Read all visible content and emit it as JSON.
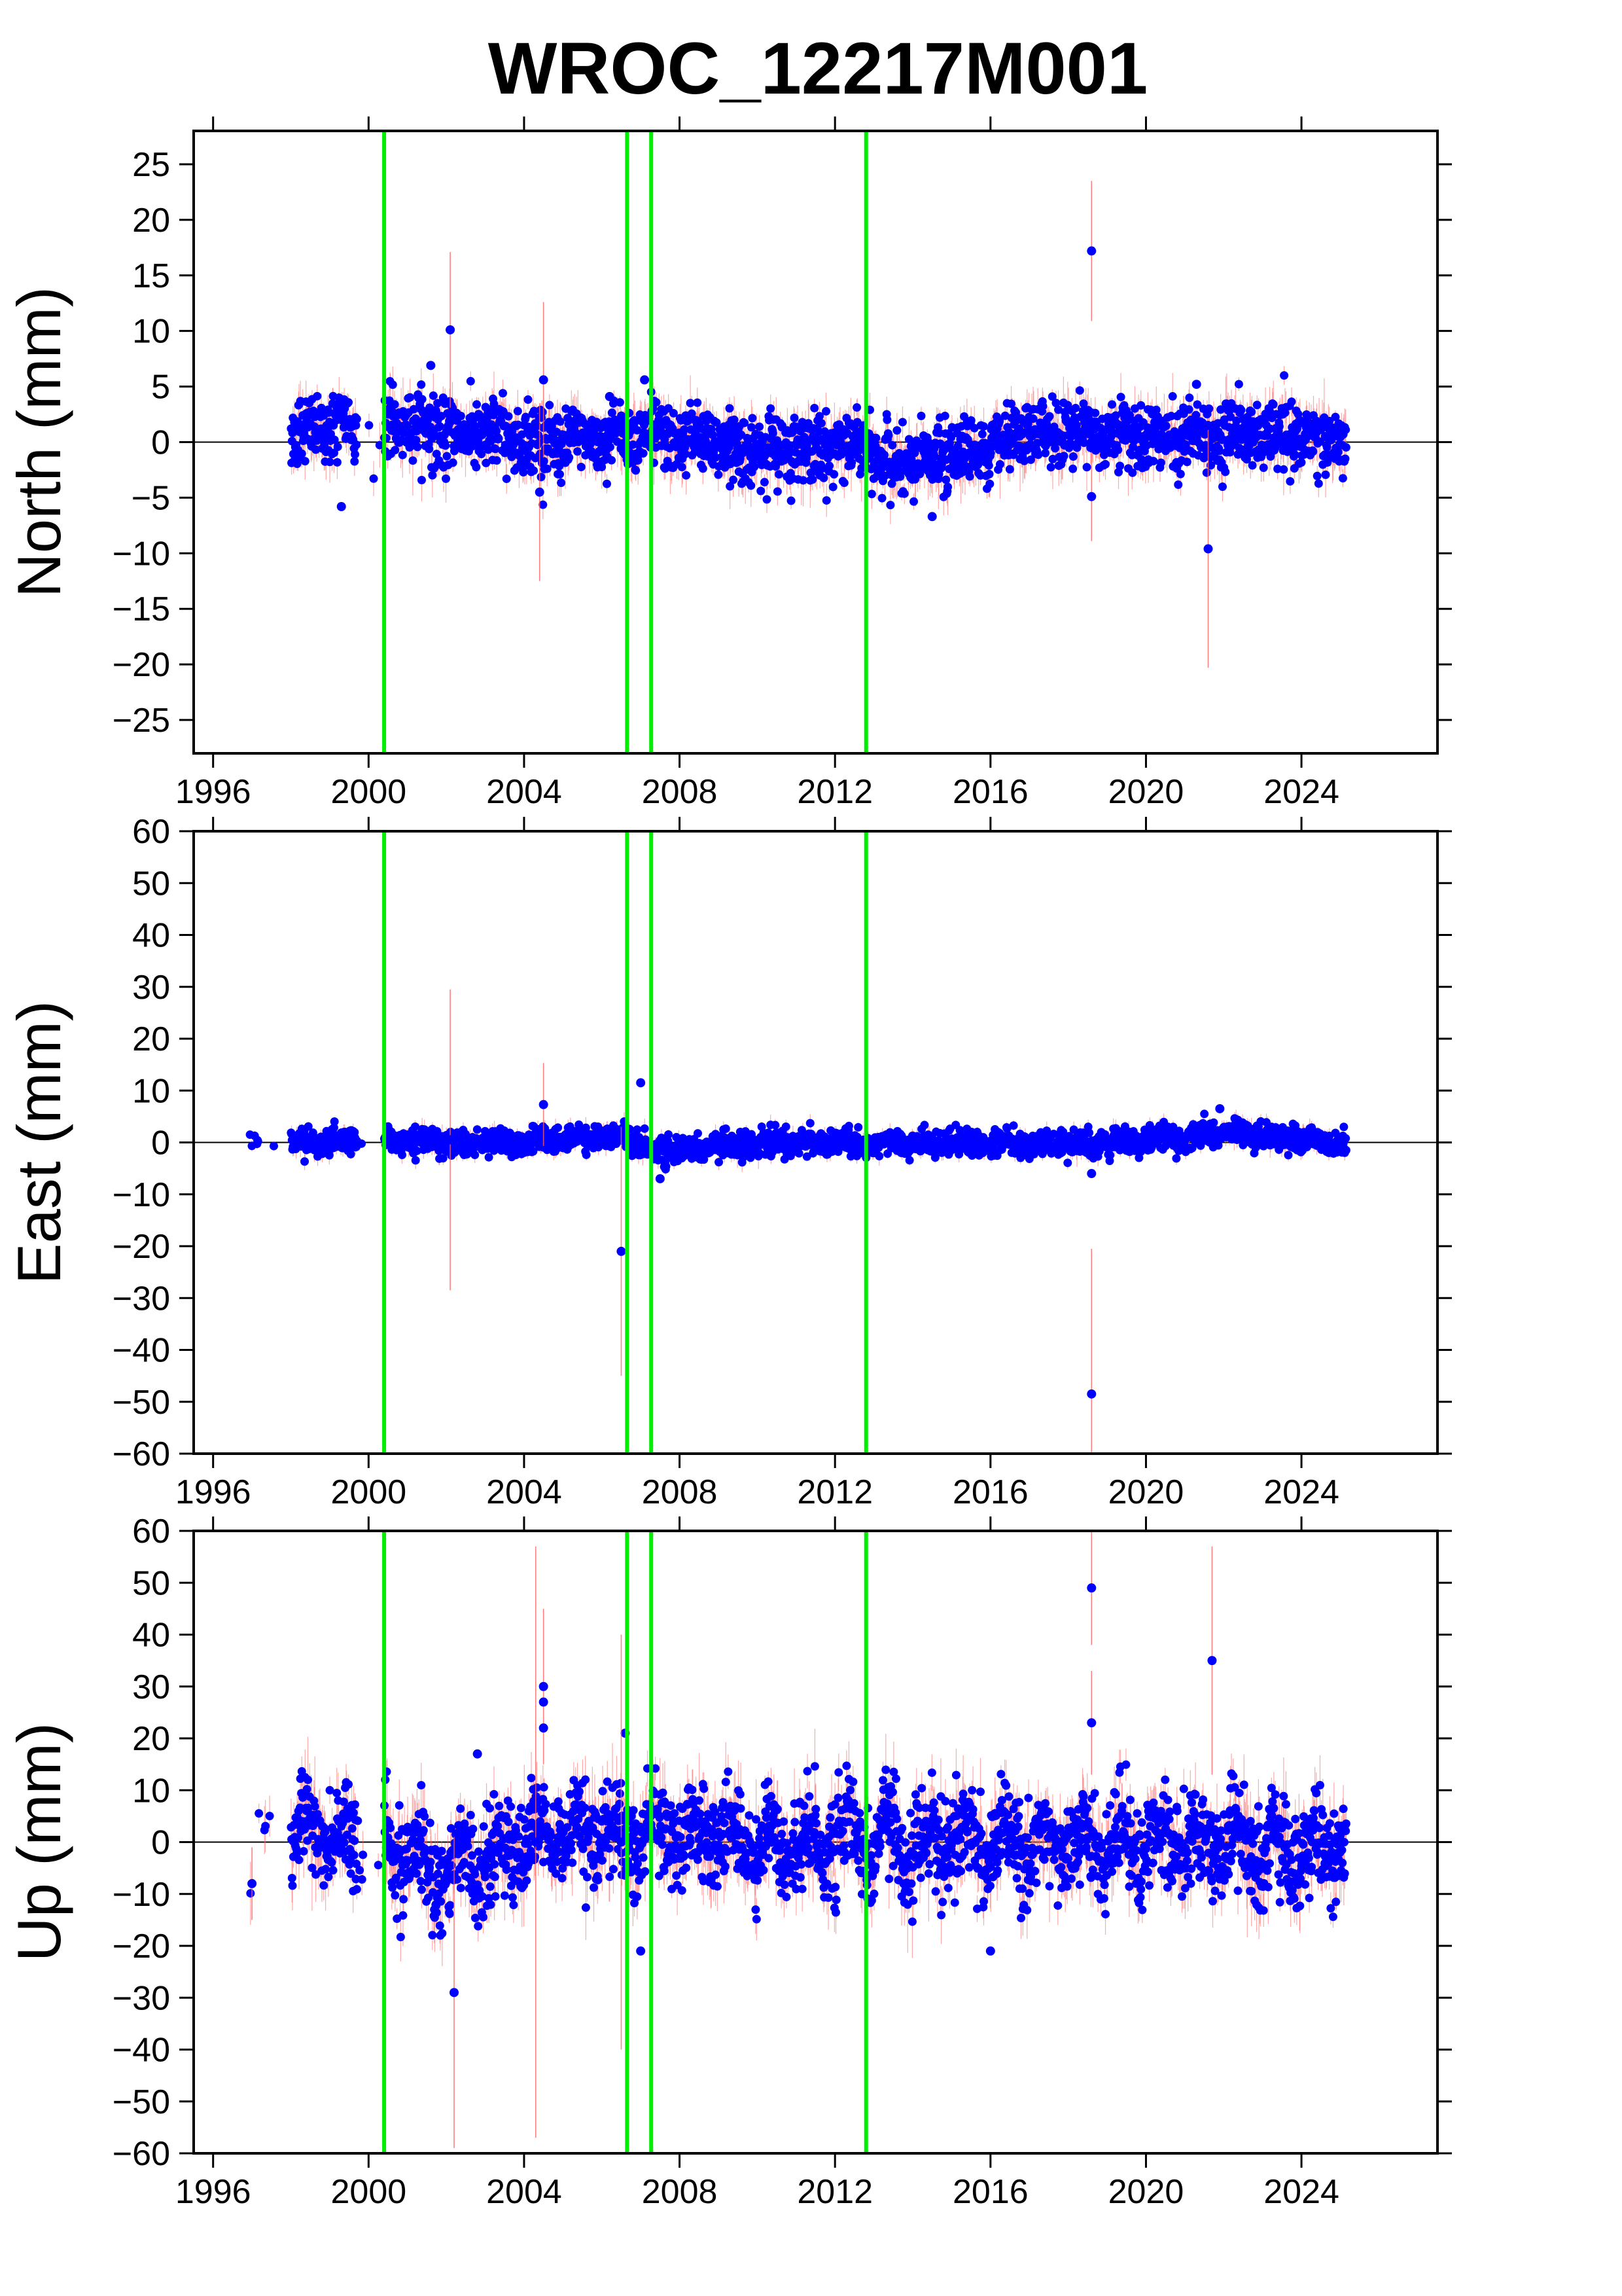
{
  "chart_data": {
    "type": "scatter",
    "title": "WROC_12217M001",
    "xlim": [
      1995.5,
      2027.5
    ],
    "x_ticks": [
      1996,
      2000,
      2004,
      2008,
      2012,
      2016,
      2020,
      2024
    ],
    "x_tick_labels": [
      "1996",
      "2000",
      "2004",
      "2008",
      "2012",
      "2016",
      "2020",
      "2024"
    ],
    "events": [
      2000.4,
      2006.65,
      2007.27,
      2012.8
    ],
    "colors": {
      "points": "#0000ff",
      "error_bars": "#ff6060",
      "events": "#00ee00",
      "zero_line": "#000000"
    },
    "grid": false,
    "panels": [
      {
        "component": "north",
        "ylabel": "North (mm)",
        "ylim": [
          -28,
          28
        ],
        "y_ticks": [
          -25,
          -20,
          -15,
          -10,
          -5,
          0,
          5,
          10,
          15,
          20,
          25
        ],
        "y_tick_labels": [
          "−25",
          "−20",
          "−15",
          "−10",
          "−5",
          "0",
          "5",
          "10",
          "15",
          "20",
          "25"
        ],
        "scatter_sd": 1.5,
        "trend": [
          [
            1997,
            0.3
          ],
          [
            2000.4,
            2.0
          ],
          [
            2002,
            0.8
          ],
          [
            2005,
            0.0
          ],
          [
            2007,
            0.8
          ],
          [
            2010,
            -0.8
          ],
          [
            2012.8,
            -0.3
          ],
          [
            2013.5,
            -2.5
          ],
          [
            2015,
            -1.0
          ],
          [
            2018,
            1.2
          ],
          [
            2020,
            0.5
          ],
          [
            2022,
            0.8
          ],
          [
            2025,
            0.3
          ]
        ],
        "gaps": [
          [
            1997.6,
            1998.0
          ],
          [
            1999.7,
            2000.4
          ]
        ],
        "outliers": [
          {
            "x": 2002.1,
            "y": 10.1,
            "err": 7.0
          },
          {
            "x": 2001.6,
            "y": 6.9,
            "err": 0
          },
          {
            "x": 2004.5,
            "y": 5.6,
            "err": 7.0
          },
          {
            "x": 2004.4,
            "y": -4.5,
            "err": 8.0
          },
          {
            "x": 2007.1,
            "y": 5.6,
            "err": 0
          },
          {
            "x": 1999.3,
            "y": -5.8,
            "err": 0
          },
          {
            "x": 2014.5,
            "y": -6.7,
            "err": 0
          },
          {
            "x": 2018.6,
            "y": 17.2,
            "err": 6.3
          },
          {
            "x": 2018.6,
            "y": -4.9,
            "err": 4.0
          },
          {
            "x": 2021.6,
            "y": -9.6,
            "err": 10.7
          },
          {
            "x": 2021.3,
            "y": 5.2,
            "err": 0
          },
          {
            "x": 2006.2,
            "y": 4.1,
            "err": 0
          }
        ]
      },
      {
        "component": "east",
        "ylabel": "East (mm)",
        "ylim": [
          -60,
          60
        ],
        "y_ticks": [
          -60,
          -50,
          -40,
          -30,
          -20,
          -10,
          0,
          10,
          20,
          30,
          40,
          50,
          60
        ],
        "y_tick_labels": [
          "−60",
          "−50",
          "−40",
          "−30",
          "−20",
          "−10",
          "0",
          "10",
          "20",
          "30",
          "40",
          "50",
          "60"
        ],
        "scatter_sd": 1.2,
        "trend": [
          [
            1997,
            0.0
          ],
          [
            2000.4,
            0.0
          ],
          [
            2004,
            0.0
          ],
          [
            2006.5,
            1.5
          ],
          [
            2007.5,
            -2.0
          ],
          [
            2010,
            0.0
          ],
          [
            2015,
            0.0
          ],
          [
            2018,
            -0.5
          ],
          [
            2021,
            1.0
          ],
          [
            2022,
            2.0
          ],
          [
            2025,
            0.0
          ]
        ],
        "gaps": [
          [
            1997.6,
            1998.0
          ],
          [
            1999.7,
            2000.4
          ]
        ],
        "outliers": [
          {
            "x": 2006.5,
            "y": -21.0,
            "err": 24.0
          },
          {
            "x": 2007.0,
            "y": 11.5,
            "err": 0
          },
          {
            "x": 2004.5,
            "y": 7.3,
            "err": 8.0
          },
          {
            "x": 2002.1,
            "y": 0.5,
            "err": 29.0
          },
          {
            "x": 2018.6,
            "y": -48.5,
            "err": 28.0
          },
          {
            "x": 2007.5,
            "y": -7.0,
            "err": 0
          },
          {
            "x": 2021.9,
            "y": 6.5,
            "err": 0
          },
          {
            "x": 2018.6,
            "y": -6.0,
            "err": 0
          }
        ]
      },
      {
        "component": "up",
        "ylabel": "Up (mm)",
        "ylim": [
          -60,
          60
        ],
        "y_ticks": [
          -60,
          -50,
          -40,
          -30,
          -20,
          -10,
          0,
          10,
          20,
          30,
          40,
          50,
          60
        ],
        "y_tick_labels": [
          "−60",
          "−50",
          "−40",
          "−30",
          "−20",
          "−10",
          "0",
          "10",
          "20",
          "30",
          "40",
          "50",
          "60"
        ],
        "scatter_sd": 4.5,
        "trend": [
          [
            1997,
            -2.0
          ],
          [
            1998.5,
            3.0
          ],
          [
            2000.4,
            -2.0
          ],
          [
            2002,
            -5.0
          ],
          [
            2004,
            0.0
          ],
          [
            2007,
            2.0
          ],
          [
            2010,
            0.0
          ],
          [
            2015,
            0.0
          ],
          [
            2020,
            0.0
          ],
          [
            2025,
            -2.0
          ]
        ],
        "gaps": [
          [
            1997.6,
            1998.0
          ],
          [
            1999.7,
            2000.4
          ]
        ],
        "outliers": [
          {
            "x": 2004.5,
            "y": 30.0,
            "err": 15.0
          },
          {
            "x": 2004.5,
            "y": 27.0,
            "err": 0
          },
          {
            "x": 2004.5,
            "y": 22.0,
            "err": 0
          },
          {
            "x": 2002.2,
            "y": -29.0,
            "err": 30.0
          },
          {
            "x": 2006.6,
            "y": 21.0,
            "err": 0
          },
          {
            "x": 2007.0,
            "y": -21.0,
            "err": 0
          },
          {
            "x": 2018.6,
            "y": 49.0,
            "err": 11.0
          },
          {
            "x": 2018.6,
            "y": 23.0,
            "err": 10.0
          },
          {
            "x": 2021.7,
            "y": 35.0,
            "err": 22.0
          },
          {
            "x": 2016.0,
            "y": -21.0,
            "err": 0
          },
          {
            "x": 2004.3,
            "y": 0.0,
            "err": 57.0
          },
          {
            "x": 2006.5,
            "y": 0.0,
            "err": 40.0
          },
          {
            "x": 1997.0,
            "y": -8.0,
            "err": 7.0
          },
          {
            "x": 2002.8,
            "y": 17.0,
            "err": 0
          }
        ]
      }
    ]
  }
}
